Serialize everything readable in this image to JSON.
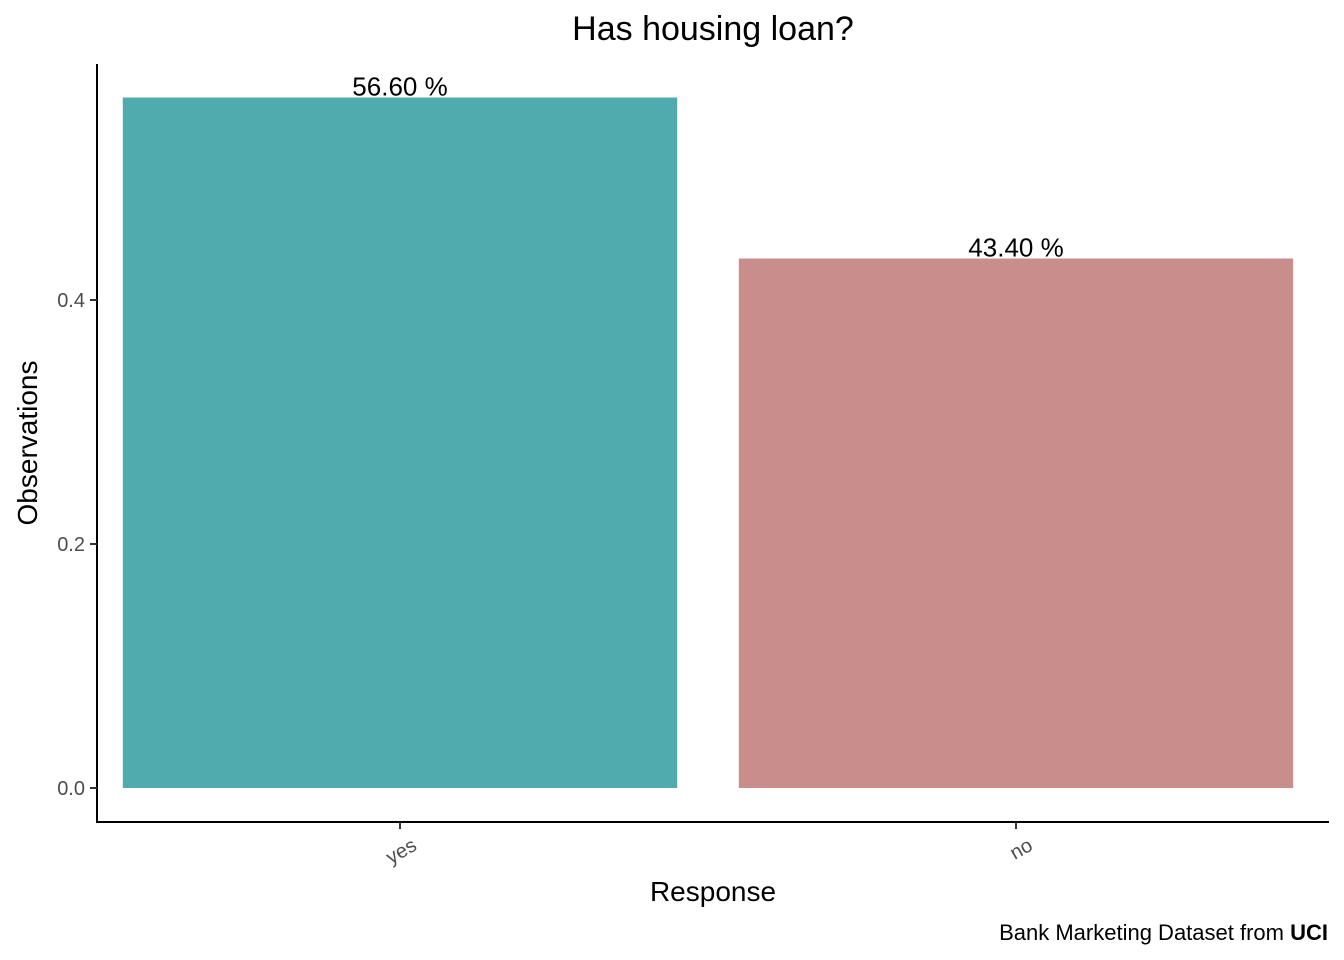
{
  "chart_data": {
    "type": "bar",
    "title": "Has housing loan?",
    "xlabel": "Response",
    "ylabel": "Observations",
    "categories": [
      "yes",
      "no"
    ],
    "values": [
      0.566,
      0.434
    ],
    "data_labels": [
      "56.60 %",
      "43.40 %"
    ],
    "colors": [
      "#50ABAF",
      "#C98D8C"
    ],
    "y_ticks": [
      0.0,
      0.2,
      0.4
    ],
    "y_tick_labels": [
      "0.0",
      "0.2",
      "0.4"
    ],
    "ylim": [
      -0.028,
      0.594
    ],
    "grid": false,
    "legend": "none",
    "caption": {
      "prefix": "Bank Marketing Dataset from ",
      "emphasis": "UCI"
    }
  }
}
